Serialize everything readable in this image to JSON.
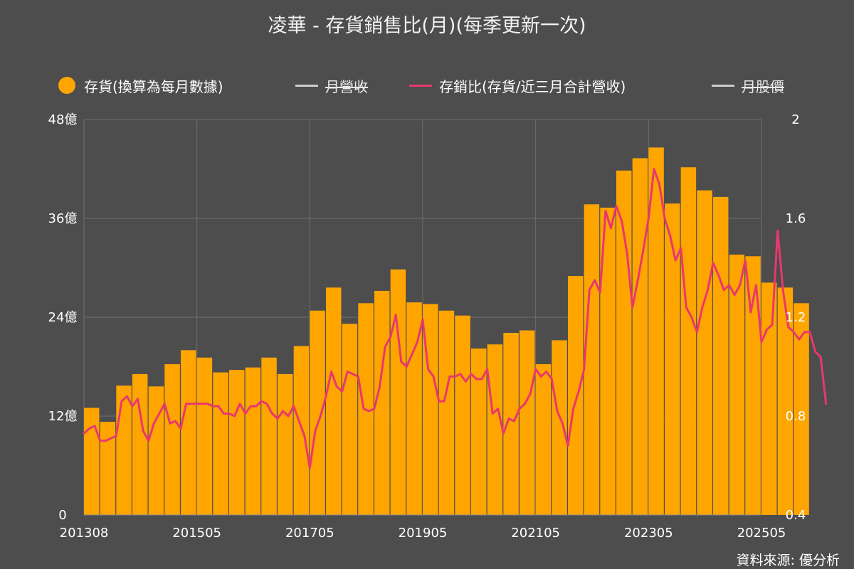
{
  "title": "凌華 - 存貨銷售比(月)(每季更新一次)",
  "source": "資料來源: 優分析",
  "legend": [
    {
      "label": "存貨(換算為每月數據)",
      "marker": "dot",
      "color": "#ffa500",
      "hidden": false
    },
    {
      "label": "月營收",
      "marker": "line",
      "color": "#cccccc",
      "hidden": true
    },
    {
      "label": "存銷比(存貨/近三月合計營收)",
      "marker": "line",
      "color": "#e8386d",
      "hidden": false
    },
    {
      "label": "月股價",
      "marker": "line",
      "color": "#cccccc",
      "hidden": true
    }
  ],
  "chart_data": {
    "type": "bar",
    "x_start": "201308",
    "x_tick_labels": [
      "201308",
      "201505",
      "201705",
      "201905",
      "202105",
      "202305",
      "202505"
    ],
    "left_axis": {
      "unit": "億",
      "min": 0,
      "max": 48,
      "ticks": [
        "0",
        "12億",
        "24億",
        "36億",
        "48億"
      ]
    },
    "right_axis": {
      "min": 0.4,
      "max": 2.0,
      "ticks": [
        "0.4",
        "0.8",
        "1.2",
        "1.6",
        "2"
      ]
    },
    "grid": true,
    "legend_position": "top",
    "series": [
      {
        "name": "存貨(換算為每月數據)",
        "axis": "left",
        "unit": "億",
        "color": "#ffa500",
        "quarterly_values": [
          13,
          11.3,
          15.7,
          17.1,
          15.6,
          18.3,
          20,
          19.1,
          17.3,
          17.6,
          17.9,
          19.1,
          17.1,
          20.5,
          24.8,
          27.6,
          23.2,
          25.7,
          27.2,
          29.8,
          25.8,
          25.6,
          24.8,
          24.2,
          20.2,
          20.7,
          22.1,
          22.4,
          18.3,
          21.2,
          29,
          37.7,
          37.3,
          41.8,
          43.3,
          44.6,
          37.8,
          42.2,
          39.4,
          38.6,
          31.6,
          31.4,
          28.2,
          27.6,
          25.7
        ]
      },
      {
        "name": "存銷比(存貨/近三月合計營收)",
        "axis": "right",
        "color": "#e8386d",
        "monthly_values": [
          0.73,
          0.75,
          0.76,
          0.7,
          0.7,
          0.71,
          0.72,
          0.86,
          0.88,
          0.84,
          0.87,
          0.74,
          0.7,
          0.77,
          0.81,
          0.85,
          0.77,
          0.78,
          0.75,
          0.85,
          0.85,
          0.85,
          0.85,
          0.85,
          0.84,
          0.84,
          0.81,
          0.81,
          0.8,
          0.85,
          0.81,
          0.84,
          0.84,
          0.86,
          0.85,
          0.81,
          0.79,
          0.82,
          0.8,
          0.84,
          0.78,
          0.72,
          0.59,
          0.74,
          0.8,
          0.88,
          0.98,
          0.92,
          0.9,
          0.98,
          0.97,
          0.96,
          0.83,
          0.82,
          0.83,
          0.92,
          1.08,
          1.12,
          1.21,
          1.02,
          1.0,
          1.05,
          1.1,
          1.19,
          0.99,
          0.96,
          0.86,
          0.86,
          0.96,
          0.96,
          0.97,
          0.94,
          0.97,
          0.95,
          0.95,
          0.99,
          0.81,
          0.83,
          0.73,
          0.79,
          0.78,
          0.83,
          0.85,
          0.89,
          0.99,
          0.96,
          0.98,
          0.95,
          0.82,
          0.77,
          0.68,
          0.83,
          0.9,
          0.99,
          1.31,
          1.35,
          1.3,
          1.63,
          1.56,
          1.65,
          1.59,
          1.46,
          1.24,
          1.35,
          1.47,
          1.6,
          1.8,
          1.74,
          1.6,
          1.53,
          1.43,
          1.48,
          1.24,
          1.2,
          1.14,
          1.24,
          1.31,
          1.42,
          1.37,
          1.31,
          1.33,
          1.29,
          1.33,
          1.43,
          1.22,
          1.33,
          1.1,
          1.15,
          1.17,
          1.55,
          1.31,
          1.16,
          1.14,
          1.11,
          1.14,
          1.14,
          1.06,
          1.04,
          0.85
        ]
      }
    ]
  }
}
